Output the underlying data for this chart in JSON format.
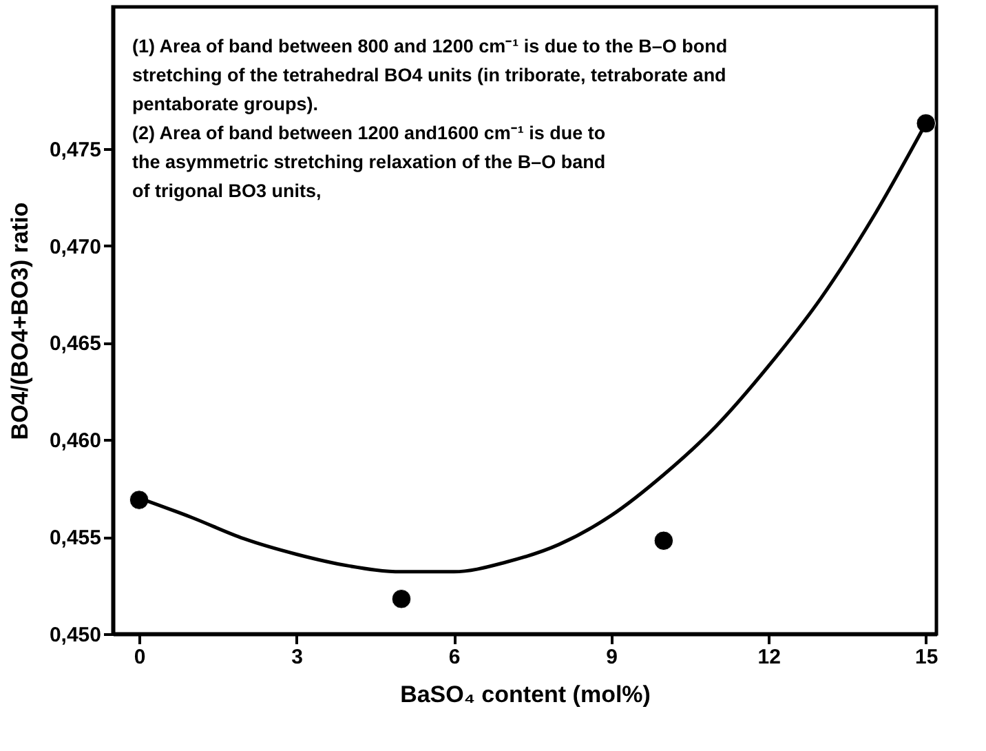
{
  "chart_data": {
    "type": "scatter",
    "xlabel": "BaSO₄ content (mol%)",
    "ylabel": "BO4/(BO4+BO3) ratio",
    "xlim": [
      -0.5,
      15.2
    ],
    "xticks": [
      0,
      3,
      6,
      9,
      12,
      15
    ],
    "ylim": [
      0.45,
      0.4823
    ],
    "yticks": [
      {
        "value": 0.45,
        "label": "0,450"
      },
      {
        "value": 0.455,
        "label": "0,455"
      },
      {
        "value": 0.46,
        "label": "0,460"
      },
      {
        "value": 0.465,
        "label": "0,465"
      },
      {
        "value": 0.47,
        "label": "0,470"
      },
      {
        "value": 0.475,
        "label": "0,475"
      }
    ],
    "grid": false,
    "series": [
      {
        "marker": "circle",
        "color": "#000000",
        "x": [
          0,
          5,
          10,
          15
        ],
        "values": [
          0.4569,
          0.4518,
          0.4548,
          0.4763
        ]
      },
      {
        "type": "line",
        "line_style": "solid",
        "color": "#000000",
        "x": [
          0,
          1,
          2,
          3,
          4,
          5,
          6,
          7,
          8,
          9,
          10,
          11,
          12,
          13,
          14,
          15
        ],
        "values": [
          0.457,
          0.456,
          0.4549,
          0.4541,
          0.4535,
          0.4532,
          0.4532,
          0.4537,
          0.4546,
          0.4561,
          0.4582,
          0.4607,
          0.4638,
          0.4673,
          0.4715,
          0.4763
        ]
      }
    ],
    "annotations": [
      "(1) Area of band between 800 and 1200 cm⁻¹ is due to the B–O bond\nstretching of the tetrahedral BO4 units (in triborate, tetraborate and\npentaborate groups).",
      "(2) Area of band between 1200 and1600 cm⁻¹ is due to\nthe asymmetric stretching relaxation of the B–O band\nof trigonal BO3 units,"
    ]
  }
}
